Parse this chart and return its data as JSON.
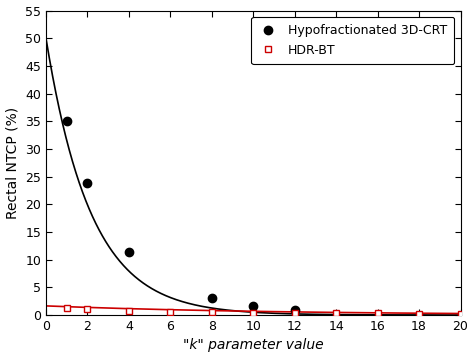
{
  "title": "",
  "xlabel": "\"k\" parameter value",
  "ylabel": "Rectal NTCP (%)",
  "xlim": [
    0,
    20
  ],
  "ylim": [
    0,
    55
  ],
  "yticks": [
    0,
    5,
    10,
    15,
    20,
    25,
    30,
    35,
    40,
    45,
    50,
    55
  ],
  "xticks": [
    0,
    2,
    4,
    6,
    8,
    10,
    12,
    14,
    16,
    18,
    20
  ],
  "series1_label": "Hypofractionated 3D-CRT",
  "series1_color": "#000000",
  "series1_x": [
    1,
    2,
    4,
    8,
    10,
    12
  ],
  "series1_y": [
    35.0,
    23.8,
    11.4,
    3.0,
    1.7,
    0.85
  ],
  "series1_A": 50.0,
  "series1_b": 0.46,
  "series2_label": "HDR-BT",
  "series2_color": "#cc0000",
  "series2_x": [
    1,
    2,
    4,
    6,
    8,
    10,
    12,
    14,
    16,
    18,
    20
  ],
  "series2_y": [
    1.35,
    1.05,
    0.75,
    0.6,
    0.5,
    0.45,
    0.38,
    0.32,
    0.28,
    0.25,
    0.22
  ],
  "series2_A": 1.65,
  "series2_b": 0.09,
  "background_color": "#ffffff",
  "legend_loc": "upper right",
  "font_size": 9,
  "axis_font_size": 10,
  "tick_label_size": 9,
  "linewidth": 1.2,
  "markersize1": 6,
  "markersize2": 5
}
